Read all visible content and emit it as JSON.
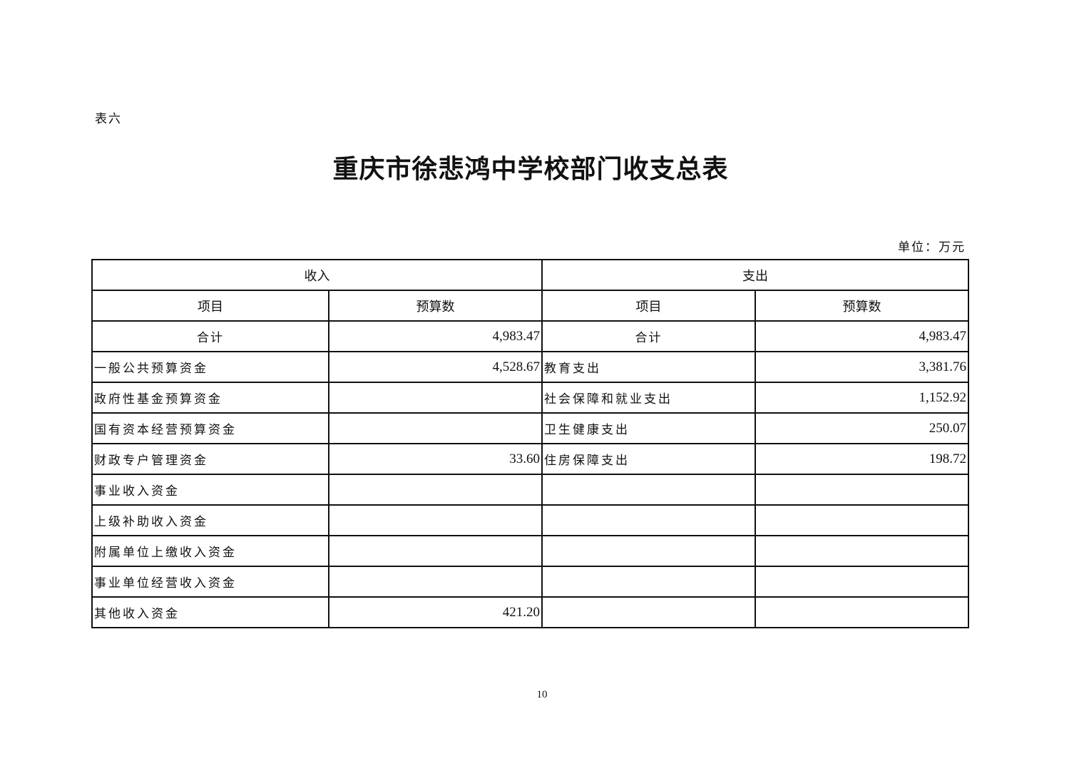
{
  "doc_label": "表六",
  "title": "重庆市徐悲鸿中学校部门收支总表",
  "unit": "单位：万元",
  "header": {
    "income": "收入",
    "expense": "支出",
    "item": "项目",
    "budget": "预算数"
  },
  "total": {
    "label": "合计",
    "income": "4,983.47",
    "expense": "4,983.47"
  },
  "rows": [
    {
      "income_item": "一般公共预算资金",
      "income_amount": "4,528.67",
      "expense_item": "教育支出",
      "expense_amount": "3,381.76"
    },
    {
      "income_item": "政府性基金预算资金",
      "income_amount": "",
      "expense_item": "社会保障和就业支出",
      "expense_amount": "1,152.92"
    },
    {
      "income_item": "国有资本经营预算资金",
      "income_amount": "",
      "expense_item": "卫生健康支出",
      "expense_amount": "250.07"
    },
    {
      "income_item": "财政专户管理资金",
      "income_amount": "33.60",
      "expense_item": "住房保障支出",
      "expense_amount": "198.72"
    },
    {
      "income_item": "事业收入资金",
      "income_amount": "",
      "expense_item": "",
      "expense_amount": ""
    },
    {
      "income_item": "上级补助收入资金",
      "income_amount": "",
      "expense_item": "",
      "expense_amount": ""
    },
    {
      "income_item": "附属单位上缴收入资金",
      "income_amount": "",
      "expense_item": "",
      "expense_amount": ""
    },
    {
      "income_item": "事业单位经营收入资金",
      "income_amount": "",
      "expense_item": "",
      "expense_amount": ""
    },
    {
      "income_item": "其他收入资金",
      "income_amount": "421.20",
      "expense_item": "",
      "expense_amount": ""
    }
  ],
  "page_number": "10"
}
